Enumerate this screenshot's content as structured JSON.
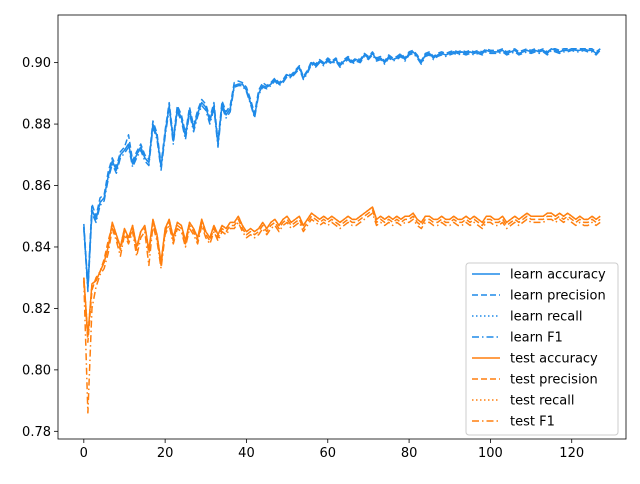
{
  "chart_data": {
    "type": "line",
    "title": "",
    "xlabel": "",
    "ylabel": "",
    "xlim": [
      -6.35,
      133.35
    ],
    "ylim": [
      0.7775,
      0.9155
    ],
    "xticks": [
      0,
      20,
      40,
      60,
      80,
      100,
      120
    ],
    "yticks": [
      0.78,
      0.8,
      0.82,
      0.84,
      0.86,
      0.88,
      0.9
    ],
    "ytick_labels": [
      "0.78",
      "0.80",
      "0.82",
      "0.84",
      "0.86",
      "0.88",
      "0.90"
    ],
    "grid": false,
    "legend_position": "lower-right",
    "colors": {
      "learn": "#1f77b4",
      "learn_line": "#1f8ae8",
      "test": "#ff7f0e"
    },
    "x": {
      "start": 0,
      "end": 127,
      "step": 1
    },
    "series": [
      {
        "name": "learn accuracy",
        "group": "learn",
        "style": "solid",
        "values": [
          0.8465,
          0.8265,
          0.852,
          0.849,
          0.8545,
          0.856,
          0.863,
          0.868,
          0.865,
          0.87,
          0.8715,
          0.8735,
          0.867,
          0.87,
          0.8725,
          0.869,
          0.8675,
          0.88,
          0.876,
          0.866,
          0.877,
          0.886,
          0.8745,
          0.885,
          0.882,
          0.876,
          0.8845,
          0.8785,
          0.8835,
          0.887,
          0.8855,
          0.881,
          0.886,
          0.8735,
          0.8865,
          0.883,
          0.885,
          0.8925,
          0.893,
          0.893,
          0.891,
          0.887,
          0.8825,
          0.89,
          0.8925,
          0.892,
          0.893,
          0.8945,
          0.893,
          0.894,
          0.896,
          0.8955,
          0.897,
          0.8985,
          0.895,
          0.897,
          0.9,
          0.899,
          0.9005,
          0.8995,
          0.901,
          0.9,
          0.901,
          0.899,
          0.9005,
          0.9015,
          0.9,
          0.901,
          0.9005,
          0.9025,
          0.9015,
          0.903,
          0.901,
          0.9015,
          0.9,
          0.902,
          0.901,
          0.9015,
          0.9025,
          0.901,
          0.903,
          0.9035,
          0.902,
          0.9,
          0.9025,
          0.903,
          0.9015,
          0.9025,
          0.903,
          0.9025,
          0.903,
          0.9035,
          0.903,
          0.9035,
          0.903,
          0.9035,
          0.903,
          0.9035,
          0.903,
          0.904,
          0.9035,
          0.9035,
          0.9035,
          0.904,
          0.903,
          0.9035,
          0.904,
          0.903,
          0.9035,
          0.904,
          0.9035,
          0.904,
          0.9035,
          0.904,
          0.903,
          0.9045,
          0.904,
          0.9035,
          0.904,
          0.904,
          0.9045,
          0.904,
          0.904,
          0.9045,
          0.904,
          0.904,
          0.903,
          0.9045
        ]
      },
      {
        "name": "learn precision",
        "group": "learn",
        "style": "dashed",
        "values": [
          0.8475,
          0.8275,
          0.854,
          0.85,
          0.856,
          0.857,
          0.8645,
          0.869,
          0.866,
          0.871,
          0.8725,
          0.8765,
          0.868,
          0.871,
          0.8735,
          0.87,
          0.8685,
          0.881,
          0.877,
          0.867,
          0.878,
          0.887,
          0.8755,
          0.886,
          0.883,
          0.877,
          0.8855,
          0.8795,
          0.8845,
          0.888,
          0.8865,
          0.882,
          0.887,
          0.8745,
          0.8875,
          0.884,
          0.886,
          0.8935,
          0.894,
          0.8935,
          0.892,
          0.888,
          0.8835,
          0.891,
          0.8935,
          0.8925,
          0.8935,
          0.895,
          0.8935,
          0.8945,
          0.8965,
          0.896,
          0.8975,
          0.899,
          0.8955,
          0.8975,
          0.9005,
          0.8995,
          0.901,
          0.9,
          0.9015,
          0.9005,
          0.9015,
          0.8995,
          0.901,
          0.902,
          0.9005,
          0.9015,
          0.901,
          0.903,
          0.902,
          0.9035,
          0.9015,
          0.902,
          0.9005,
          0.9025,
          0.9015,
          0.902,
          0.903,
          0.9015,
          0.9035,
          0.904,
          0.9025,
          0.9005,
          0.903,
          0.9035,
          0.902,
          0.903,
          0.9035,
          0.903,
          0.9035,
          0.904,
          0.9035,
          0.904,
          0.9035,
          0.904,
          0.9035,
          0.904,
          0.9035,
          0.9045,
          0.904,
          0.904,
          0.904,
          0.9045,
          0.9035,
          0.904,
          0.9045,
          0.9035,
          0.904,
          0.9045,
          0.904,
          0.9045,
          0.904,
          0.9045,
          0.9035,
          0.9045,
          0.9045,
          0.904,
          0.9045,
          0.9045,
          0.9045,
          0.9045,
          0.9045,
          0.9045,
          0.9045,
          0.9045,
          0.9035,
          0.9045
        ]
      },
      {
        "name": "learn recall",
        "group": "learn",
        "style": "dotted",
        "values": [
          0.8465,
          0.8265,
          0.852,
          0.849,
          0.8545,
          0.856,
          0.863,
          0.868,
          0.865,
          0.87,
          0.8715,
          0.8735,
          0.867,
          0.87,
          0.8725,
          0.869,
          0.8675,
          0.88,
          0.876,
          0.866,
          0.877,
          0.886,
          0.8745,
          0.885,
          0.882,
          0.876,
          0.8845,
          0.8785,
          0.8835,
          0.887,
          0.8855,
          0.881,
          0.886,
          0.8735,
          0.8865,
          0.883,
          0.885,
          0.8925,
          0.893,
          0.893,
          0.891,
          0.887,
          0.8825,
          0.89,
          0.8925,
          0.892,
          0.893,
          0.8945,
          0.893,
          0.894,
          0.896,
          0.8955,
          0.897,
          0.8985,
          0.895,
          0.897,
          0.9,
          0.899,
          0.9005,
          0.8995,
          0.901,
          0.9,
          0.901,
          0.899,
          0.9005,
          0.9015,
          0.9,
          0.901,
          0.9005,
          0.9025,
          0.9015,
          0.903,
          0.901,
          0.9015,
          0.9,
          0.902,
          0.901,
          0.9015,
          0.9025,
          0.901,
          0.903,
          0.9035,
          0.902,
          0.9,
          0.9025,
          0.903,
          0.9015,
          0.9025,
          0.903,
          0.9025,
          0.903,
          0.9035,
          0.903,
          0.9035,
          0.903,
          0.9035,
          0.903,
          0.9035,
          0.903,
          0.904,
          0.9035,
          0.9035,
          0.9035,
          0.904,
          0.903,
          0.9035,
          0.904,
          0.903,
          0.9035,
          0.904,
          0.9035,
          0.904,
          0.9035,
          0.904,
          0.903,
          0.9045,
          0.904,
          0.9035,
          0.904,
          0.904,
          0.9045,
          0.904,
          0.904,
          0.9045,
          0.904,
          0.904,
          0.903,
          0.9045
        ]
      },
      {
        "name": "learn F1",
        "group": "learn",
        "style": "dashdot",
        "values": [
          0.846,
          0.8255,
          0.851,
          0.848,
          0.8535,
          0.855,
          0.862,
          0.867,
          0.864,
          0.869,
          0.8705,
          0.8725,
          0.866,
          0.869,
          0.8715,
          0.868,
          0.8665,
          0.879,
          0.875,
          0.865,
          0.876,
          0.885,
          0.8735,
          0.884,
          0.881,
          0.875,
          0.8835,
          0.8775,
          0.8825,
          0.886,
          0.8845,
          0.88,
          0.885,
          0.8725,
          0.8855,
          0.882,
          0.884,
          0.892,
          0.8925,
          0.8925,
          0.8905,
          0.8865,
          0.882,
          0.8895,
          0.892,
          0.8915,
          0.8925,
          0.894,
          0.8925,
          0.8935,
          0.8955,
          0.895,
          0.8965,
          0.898,
          0.8945,
          0.8965,
          0.8995,
          0.8985,
          0.9,
          0.899,
          0.9005,
          0.8995,
          0.9005,
          0.8985,
          0.9,
          0.901,
          0.8995,
          0.9005,
          0.9,
          0.902,
          0.901,
          0.9025,
          0.9005,
          0.901,
          0.8995,
          0.9015,
          0.9005,
          0.901,
          0.902,
          0.9005,
          0.9025,
          0.903,
          0.9015,
          0.8995,
          0.902,
          0.9025,
          0.901,
          0.902,
          0.9025,
          0.902,
          0.9025,
          0.903,
          0.9025,
          0.903,
          0.9025,
          0.903,
          0.9025,
          0.903,
          0.9025,
          0.9035,
          0.903,
          0.903,
          0.903,
          0.9035,
          0.9025,
          0.903,
          0.9035,
          0.9025,
          0.903,
          0.9035,
          0.903,
          0.9035,
          0.903,
          0.9035,
          0.9025,
          0.904,
          0.9035,
          0.903,
          0.9035,
          0.9035,
          0.904,
          0.9035,
          0.9035,
          0.904,
          0.9035,
          0.9035,
          0.9025,
          0.904
        ]
      },
      {
        "name": "test accuracy",
        "group": "test",
        "style": "solid",
        "values": [
          0.83,
          0.811,
          0.828,
          0.829,
          0.832,
          0.835,
          0.84,
          0.848,
          0.844,
          0.84,
          0.846,
          0.843,
          0.847,
          0.84,
          0.845,
          0.847,
          0.839,
          0.849,
          0.844,
          0.835,
          0.846,
          0.849,
          0.843,
          0.848,
          0.847,
          0.842,
          0.848,
          0.846,
          0.843,
          0.849,
          0.845,
          0.843,
          0.847,
          0.844,
          0.847,
          0.846,
          0.848,
          0.848,
          0.85,
          0.847,
          0.845,
          0.846,
          0.845,
          0.846,
          0.848,
          0.846,
          0.848,
          0.849,
          0.847,
          0.849,
          0.85,
          0.848,
          0.849,
          0.85,
          0.847,
          0.849,
          0.851,
          0.85,
          0.849,
          0.85,
          0.849,
          0.85,
          0.849,
          0.848,
          0.849,
          0.85,
          0.849,
          0.849,
          0.85,
          0.851,
          0.852,
          0.853,
          0.849,
          0.85,
          0.849,
          0.85,
          0.849,
          0.85,
          0.849,
          0.85,
          0.85,
          0.851,
          0.849,
          0.848,
          0.85,
          0.85,
          0.849,
          0.849,
          0.85,
          0.849,
          0.849,
          0.85,
          0.849,
          0.849,
          0.85,
          0.849,
          0.85,
          0.849,
          0.848,
          0.85,
          0.85,
          0.849,
          0.849,
          0.85,
          0.848,
          0.849,
          0.85,
          0.849,
          0.85,
          0.851,
          0.85,
          0.85,
          0.85,
          0.85,
          0.851,
          0.851,
          0.85,
          0.851,
          0.85,
          0.851,
          0.85,
          0.849,
          0.85,
          0.849,
          0.849,
          0.85,
          0.849,
          0.85
        ]
      },
      {
        "name": "test precision",
        "group": "test",
        "style": "dashed",
        "values": [
          0.83,
          0.809,
          0.826,
          0.83,
          0.832,
          0.836,
          0.842,
          0.847,
          0.843,
          0.839,
          0.845,
          0.842,
          0.846,
          0.839,
          0.845,
          0.846,
          0.838,
          0.848,
          0.843,
          0.834,
          0.845,
          0.848,
          0.842,
          0.847,
          0.846,
          0.841,
          0.847,
          0.845,
          0.842,
          0.848,
          0.844,
          0.842,
          0.846,
          0.843,
          0.846,
          0.845,
          0.847,
          0.847,
          0.849,
          0.846,
          0.844,
          0.845,
          0.844,
          0.845,
          0.847,
          0.845,
          0.847,
          0.848,
          0.846,
          0.848,
          0.849,
          0.847,
          0.848,
          0.849,
          0.846,
          0.848,
          0.85,
          0.849,
          0.848,
          0.849,
          0.848,
          0.849,
          0.848,
          0.847,
          0.848,
          0.849,
          0.848,
          0.848,
          0.849,
          0.85,
          0.851,
          0.852,
          0.848,
          0.849,
          0.848,
          0.849,
          0.848,
          0.849,
          0.848,
          0.849,
          0.849,
          0.85,
          0.848,
          0.847,
          0.849,
          0.849,
          0.848,
          0.848,
          0.849,
          0.848,
          0.848,
          0.849,
          0.848,
          0.848,
          0.849,
          0.848,
          0.849,
          0.848,
          0.847,
          0.849,
          0.849,
          0.848,
          0.848,
          0.849,
          0.847,
          0.848,
          0.849,
          0.848,
          0.849,
          0.85,
          0.849,
          0.849,
          0.849,
          0.849,
          0.85,
          0.85,
          0.849,
          0.85,
          0.849,
          0.85,
          0.849,
          0.848,
          0.849,
          0.848,
          0.848,
          0.849,
          0.848,
          0.849
        ]
      },
      {
        "name": "test recall",
        "group": "test",
        "style": "dotted",
        "values": [
          0.83,
          0.811,
          0.828,
          0.829,
          0.832,
          0.835,
          0.84,
          0.848,
          0.844,
          0.84,
          0.846,
          0.843,
          0.847,
          0.84,
          0.845,
          0.847,
          0.839,
          0.849,
          0.844,
          0.835,
          0.846,
          0.849,
          0.843,
          0.848,
          0.847,
          0.842,
          0.848,
          0.846,
          0.843,
          0.849,
          0.845,
          0.843,
          0.847,
          0.844,
          0.847,
          0.846,
          0.848,
          0.848,
          0.85,
          0.847,
          0.845,
          0.846,
          0.845,
          0.846,
          0.848,
          0.846,
          0.848,
          0.849,
          0.847,
          0.849,
          0.85,
          0.848,
          0.849,
          0.85,
          0.847,
          0.849,
          0.851,
          0.85,
          0.849,
          0.85,
          0.849,
          0.85,
          0.849,
          0.848,
          0.849,
          0.85,
          0.849,
          0.849,
          0.85,
          0.851,
          0.852,
          0.853,
          0.849,
          0.85,
          0.849,
          0.85,
          0.849,
          0.85,
          0.849,
          0.85,
          0.85,
          0.851,
          0.849,
          0.848,
          0.85,
          0.85,
          0.849,
          0.849,
          0.85,
          0.849,
          0.849,
          0.85,
          0.849,
          0.849,
          0.85,
          0.849,
          0.85,
          0.849,
          0.848,
          0.85,
          0.85,
          0.849,
          0.849,
          0.85,
          0.848,
          0.849,
          0.85,
          0.849,
          0.85,
          0.851,
          0.85,
          0.85,
          0.85,
          0.85,
          0.851,
          0.851,
          0.85,
          0.851,
          0.85,
          0.851,
          0.85,
          0.849,
          0.85,
          0.849,
          0.849,
          0.85,
          0.849,
          0.85
        ]
      },
      {
        "name": "test F1",
        "group": "test",
        "style": "dashdot",
        "values": [
          0.829,
          0.786,
          0.82,
          0.827,
          0.831,
          0.833,
          0.838,
          0.846,
          0.842,
          0.837,
          0.844,
          0.841,
          0.845,
          0.837,
          0.843,
          0.845,
          0.834,
          0.847,
          0.842,
          0.833,
          0.844,
          0.847,
          0.841,
          0.846,
          0.845,
          0.84,
          0.846,
          0.844,
          0.841,
          0.847,
          0.843,
          0.841,
          0.845,
          0.842,
          0.845,
          0.844,
          0.846,
          0.846,
          0.848,
          0.845,
          0.843,
          0.844,
          0.843,
          0.844,
          0.846,
          0.844,
          0.846,
          0.847,
          0.845,
          0.847,
          0.848,
          0.846,
          0.847,
          0.848,
          0.845,
          0.847,
          0.849,
          0.848,
          0.847,
          0.848,
          0.847,
          0.848,
          0.847,
          0.846,
          0.847,
          0.848,
          0.847,
          0.847,
          0.848,
          0.849,
          0.85,
          0.851,
          0.847,
          0.848,
          0.847,
          0.848,
          0.847,
          0.848,
          0.847,
          0.848,
          0.848,
          0.849,
          0.847,
          0.846,
          0.848,
          0.848,
          0.847,
          0.847,
          0.848,
          0.847,
          0.847,
          0.848,
          0.847,
          0.847,
          0.848,
          0.847,
          0.848,
          0.847,
          0.846,
          0.848,
          0.848,
          0.847,
          0.847,
          0.848,
          0.846,
          0.847,
          0.848,
          0.847,
          0.848,
          0.849,
          0.848,
          0.848,
          0.848,
          0.848,
          0.849,
          0.849,
          0.848,
          0.849,
          0.848,
          0.849,
          0.848,
          0.847,
          0.848,
          0.847,
          0.847,
          0.848,
          0.847,
          0.848
        ]
      }
    ]
  }
}
